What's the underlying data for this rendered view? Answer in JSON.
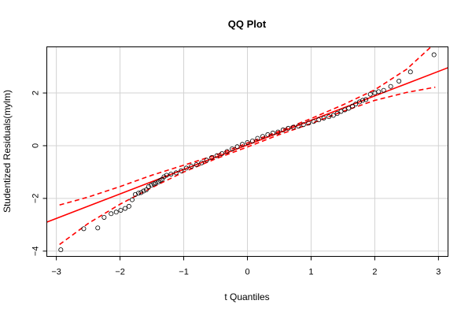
{
  "chart_data": {
    "type": "scatter",
    "title": "QQ Plot",
    "xlabel": "t Quantiles",
    "ylabel": "Studentized Residuals(mylm)",
    "xlim": [
      -3.15,
      3.15
    ],
    "ylim": [
      -4.2,
      3.75
    ],
    "x_ticks": [
      -3,
      -2,
      -1,
      0,
      1,
      2,
      3
    ],
    "x_tick_labels": [
      "−3",
      "−2",
      "−1",
      "0",
      "1",
      "2",
      "3"
    ],
    "y_ticks": [
      -4,
      -2,
      0,
      2
    ],
    "y_tick_labels": [
      "−4",
      "−2",
      "0",
      "2"
    ],
    "grid": true,
    "colors": {
      "points": "#000000",
      "reference_line": "#ff0000",
      "envelope": "#ff0000",
      "grid": "#d3d3d3"
    },
    "reference_line": {
      "intercept": 0.03,
      "slope": 0.93,
      "style": "solid"
    },
    "envelope": {
      "style": "dashed",
      "x": [
        -2.95,
        -2.5,
        -2.0,
        -1.5,
        -1.0,
        -0.5,
        0.0,
        0.5,
        1.0,
        1.5,
        2.0,
        2.5,
        2.95
      ],
      "upper": [
        -2.25,
        -1.95,
        -1.55,
        -1.12,
        -0.74,
        -0.36,
        0.1,
        0.55,
        1.03,
        1.55,
        2.12,
        2.9,
        3.9
      ],
      "lower": [
        -3.75,
        -2.95,
        -2.22,
        -1.59,
        -1.0,
        -0.5,
        -0.05,
        0.42,
        0.84,
        1.3,
        1.72,
        2.02,
        2.22
      ]
    },
    "points": {
      "x": [
        -2.93,
        -2.57,
        -2.35,
        -2.25,
        -2.14,
        -2.06,
        -1.99,
        -1.92,
        -1.86,
        -1.81,
        -1.76,
        -1.71,
        -1.67,
        -1.63,
        -1.59,
        -1.55,
        -1.51,
        -1.47,
        -1.44,
        -1.4,
        -1.37,
        -1.34,
        -1.31,
        -1.27,
        -1.2,
        -1.12,
        -1.04,
        -0.96,
        -0.88,
        -0.8,
        -0.72,
        -0.64,
        -0.56,
        -0.48,
        -0.4,
        -0.32,
        -0.24,
        -0.16,
        -0.08,
        0.0,
        0.08,
        0.16,
        0.24,
        0.32,
        0.4,
        0.48,
        0.56,
        0.64,
        0.72,
        0.8,
        0.88,
        0.96,
        1.04,
        1.12,
        1.2,
        1.28,
        1.35,
        1.41,
        1.47,
        1.53,
        1.59,
        1.65,
        1.7,
        1.76,
        1.81,
        1.86,
        1.93,
        2.0,
        2.06,
        2.14,
        2.25,
        2.38,
        2.56,
        2.93
      ],
      "y": [
        -3.95,
        -3.15,
        -3.12,
        -2.72,
        -2.58,
        -2.52,
        -2.45,
        -2.38,
        -2.3,
        -2.05,
        -1.85,
        -1.8,
        -1.78,
        -1.72,
        -1.68,
        -1.55,
        -1.5,
        -1.45,
        -1.42,
        -1.38,
        -1.32,
        -1.28,
        -1.18,
        -1.12,
        -1.08,
        -1.03,
        -0.95,
        -0.85,
        -0.78,
        -0.72,
        -0.65,
        -0.55,
        -0.45,
        -0.38,
        -0.3,
        -0.22,
        -0.12,
        -0.04,
        0.05,
        0.12,
        0.18,
        0.28,
        0.35,
        0.42,
        0.48,
        0.52,
        0.6,
        0.66,
        0.7,
        0.74,
        0.8,
        0.86,
        0.92,
        0.98,
        1.05,
        1.1,
        1.15,
        1.22,
        1.3,
        1.36,
        1.42,
        1.5,
        1.58,
        1.66,
        1.72,
        1.75,
        1.95,
        2.0,
        2.05,
        2.1,
        2.25,
        2.45,
        2.8,
        3.45
      ]
    }
  }
}
